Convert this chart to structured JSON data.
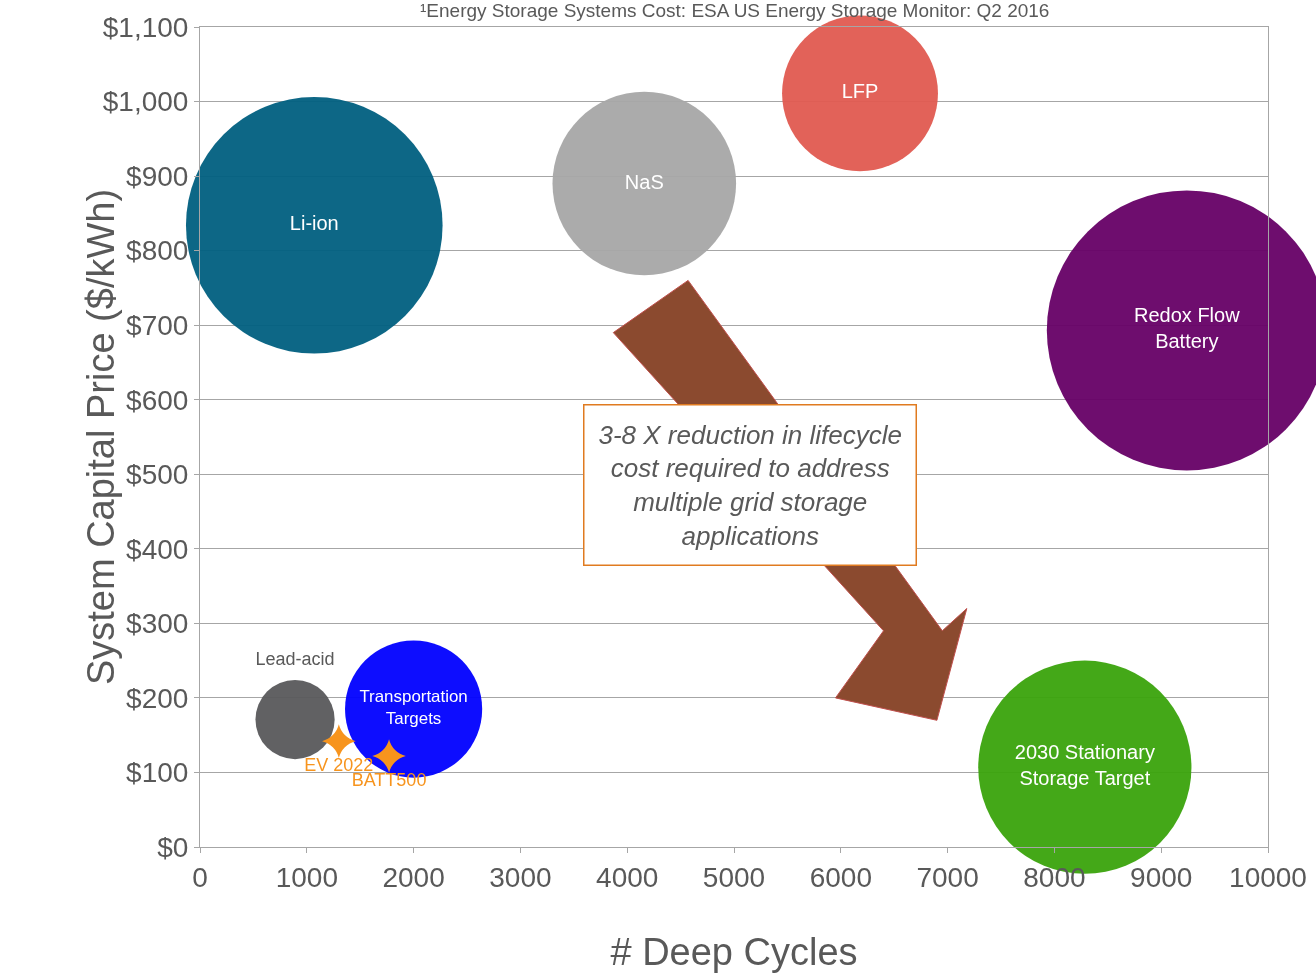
{
  "chart_data": {
    "type": "bubble",
    "xlabel": "# Deep Cycles",
    "ylabel": "System Capital Price ($/kWh)",
    "annotations": [
      "¹Energy Storage Systems Cost: ESA US Energy Storage Monitor: Q2 2016",
      "3-8 X reduction in lifecycle cost required to address multiple grid storage applications"
    ],
    "xlim": [
      0,
      10000
    ],
    "xticks": [
      0,
      1000,
      2000,
      3000,
      4000,
      5000,
      6000,
      7000,
      8000,
      9000,
      10000
    ],
    "ylim": [
      0,
      1100
    ],
    "yticks": [
      {
        "value": 0,
        "label": "$0"
      },
      {
        "value": 100,
        "label": "$100"
      },
      {
        "value": 200,
        "label": "$200"
      },
      {
        "value": 300,
        "label": "$300"
      },
      {
        "value": 400,
        "label": "$400"
      },
      {
        "value": 500,
        "label": "$500"
      },
      {
        "value": 600,
        "label": "$600"
      },
      {
        "value": 700,
        "label": "$700"
      },
      {
        "value": 800,
        "label": "$800"
      },
      {
        "value": 900,
        "label": "$900"
      },
      {
        "value": 1000,
        "label": "$1,000"
      },
      {
        "value": 1100,
        "label": "$1,100"
      }
    ],
    "grid": "y",
    "legend": false,
    "series": [
      {
        "name": "Li-ion",
        "color": "#005f7f",
        "x": [
          1070
        ],
        "values": [
          834
        ],
        "sizes": [
          0.84
        ],
        "marker": "circle"
      },
      {
        "name": "NaS",
        "color": "#a6a6a6",
        "x": [
          4160
        ],
        "values": [
          890
        ],
        "sizes": [
          0.43
        ],
        "marker": "circle"
      },
      {
        "name": "LFP",
        "color": "#e05a50",
        "x": [
          6180
        ],
        "values": [
          1011
        ],
        "sizes": [
          0.31
        ],
        "marker": "circle"
      },
      {
        "name": "Redox Flow Battery",
        "color": "#660066",
        "x": [
          9240
        ],
        "values": [
          693
        ],
        "sizes": [
          1
        ],
        "marker": "circle"
      },
      {
        "name": "Lead-acid",
        "color": "#58595b",
        "x": [
          890
        ],
        "values": [
          171
        ],
        "sizes": [
          0.08
        ],
        "marker": "circle"
      },
      {
        "name": "Transportation Targets",
        "color": "#0000ff",
        "x": [
          2000
        ],
        "values": [
          185
        ],
        "sizes": [
          0.24
        ],
        "marker": "circle"
      },
      {
        "name": "2030 Stationary Storage Target",
        "color": "#3aa30c",
        "x": [
          8285
        ],
        "values": [
          107
        ],
        "sizes": [
          0.58
        ],
        "marker": "circle"
      },
      {
        "name": "EV 2022",
        "type": "scatter",
        "color": "#f7941d",
        "x": [
          1300
        ],
        "values": [
          142
        ],
        "marker": "star"
      },
      {
        "name": "BATT500",
        "type": "scatter",
        "color": "#f7941d",
        "x": [
          1770
        ],
        "values": [
          122
        ],
        "marker": "star"
      }
    ]
  }
}
